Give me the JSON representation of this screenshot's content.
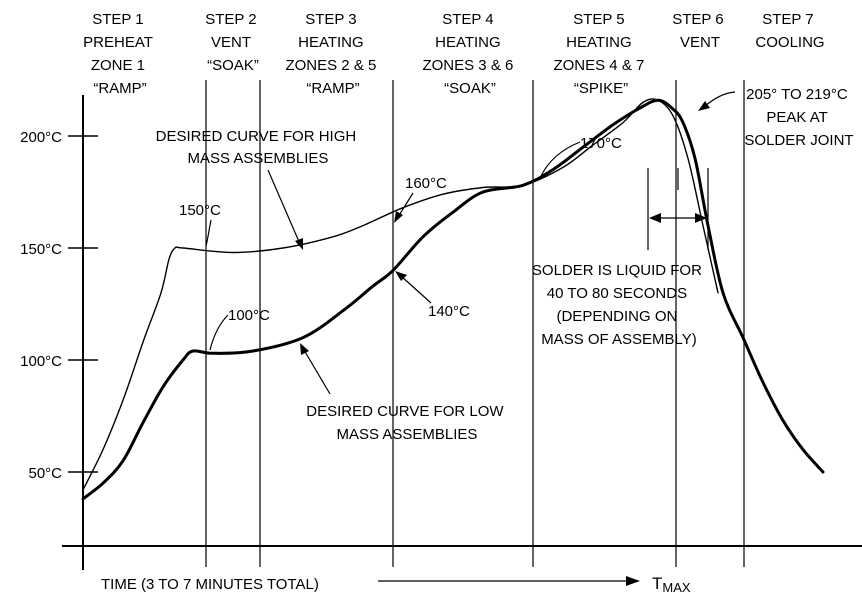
{
  "chart_data": {
    "type": "line",
    "title": "",
    "xlabel": "",
    "ylabel": "",
    "ylim": [
      0,
      225
    ],
    "y_ticks": [
      {
        "label": "50°C",
        "value": 50
      },
      {
        "label": "100°C",
        "value": 100
      },
      {
        "label": "150°C",
        "value": 150
      },
      {
        "label": "200°C",
        "value": 200
      }
    ],
    "time_label": "TIME (3 TO 7 MINUTES TOTAL)",
    "tmax_main": "T",
    "tmax_sub": "MAX",
    "steps": [
      {
        "lines": [
          "STEP 1",
          "PREHEAT",
          "ZONE 1",
          "“RAMP”"
        ]
      },
      {
        "lines": [
          "STEP 2",
          "VENT",
          "“SOAK”"
        ]
      },
      {
        "lines": [
          "STEP 3",
          "HEATING",
          "ZONES 2 & 5",
          "“RAMP”"
        ]
      },
      {
        "lines": [
          "STEP 4",
          "HEATING",
          "ZONES 3 & 6",
          "“SOAK”"
        ]
      },
      {
        "lines": [
          "STEP 5",
          "HEATING",
          "ZONES 4 & 7",
          "“SPIKE”"
        ]
      },
      {
        "lines": [
          "STEP 6",
          "VENT"
        ]
      },
      {
        "lines": [
          "STEP 7",
          "COOLING"
        ]
      }
    ],
    "series": [
      {
        "key": "high_mass",
        "points": [
          [
            0,
            42
          ],
          [
            20,
            60
          ],
          [
            40,
            82
          ],
          [
            60,
            108
          ],
          [
            78,
            130
          ],
          [
            86,
            145
          ],
          [
            92,
            150
          ],
          [
            100,
            150
          ],
          [
            150,
            148
          ],
          [
            200,
            150
          ],
          [
            250,
            155
          ],
          [
            280,
            160
          ],
          [
            320,
            168
          ],
          [
            360,
            174
          ],
          [
            400,
            177
          ],
          [
            440,
            178
          ],
          [
            480,
            186
          ],
          [
            510,
            196
          ],
          [
            540,
            206
          ],
          [
            560,
            215
          ],
          [
            575,
            216
          ],
          [
            590,
            209
          ],
          [
            605,
            190
          ],
          [
            620,
            160
          ],
          [
            635,
            130
          ]
        ]
      },
      {
        "key": "low_mass",
        "points": [
          [
            0,
            38
          ],
          [
            20,
            45
          ],
          [
            40,
            55
          ],
          [
            60,
            72
          ],
          [
            80,
            88
          ],
          [
            100,
            100
          ],
          [
            110,
            104
          ],
          [
            130,
            103
          ],
          [
            170,
            104
          ],
          [
            220,
            110
          ],
          [
            260,
            122
          ],
          [
            290,
            133
          ],
          [
            310,
            140
          ],
          [
            340,
            155
          ],
          [
            370,
            166
          ],
          [
            400,
            175
          ],
          [
            440,
            178
          ],
          [
            470,
            185
          ],
          [
            500,
            195
          ],
          [
            530,
            205
          ],
          [
            555,
            212
          ],
          [
            575,
            216
          ],
          [
            590,
            212
          ],
          [
            600,
            206
          ],
          [
            612,
            190
          ],
          [
            625,
            160
          ],
          [
            640,
            130
          ],
          [
            660,
            110
          ],
          [
            680,
            90
          ],
          [
            700,
            73
          ],
          [
            720,
            60
          ],
          [
            740,
            50
          ]
        ]
      }
    ],
    "annotations": [
      {
        "lines": [
          "DESIRED CURVE FOR HIGH",
          "MASS ASSEMBLIES"
        ]
      },
      {
        "lines": [
          "DESIRED CURVE FOR LOW",
          "MASS ASSEMBLIES"
        ]
      },
      {
        "lines": [
          "150°C"
        ]
      },
      {
        "lines": [
          "100°C"
        ]
      },
      {
        "lines": [
          "160°C"
        ]
      },
      {
        "lines": [
          "140°C"
        ]
      },
      {
        "lines": [
          "170°C"
        ]
      },
      {
        "lines": [
          "205° TO 219°C",
          "PEAK AT",
          "SOLDER JOINT"
        ]
      },
      {
        "lines": [
          "SOLDER IS LIQUID FOR",
          "40 TO 80 SECONDS",
          "(DEPENDING ON",
          "MASS OF ASSEMBLY)"
        ]
      }
    ]
  }
}
